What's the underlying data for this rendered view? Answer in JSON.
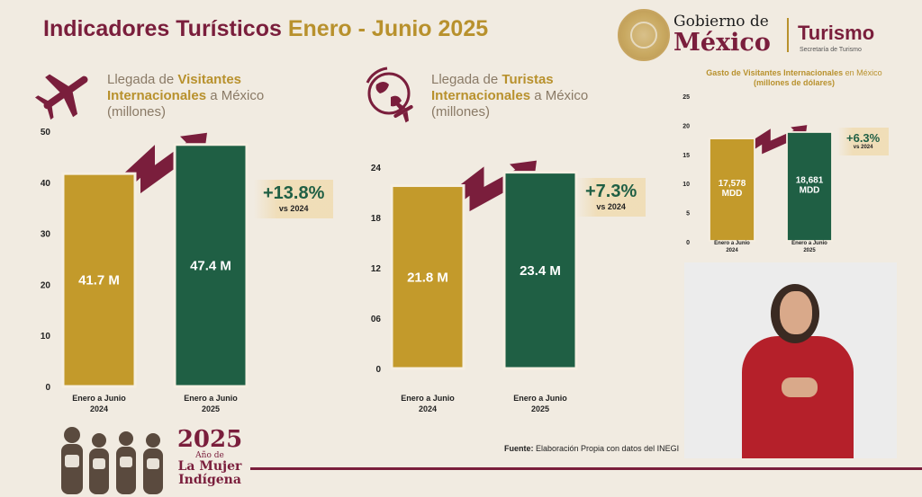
{
  "header": {
    "title_main": "Indicadores Turísticos",
    "title_period": "Enero - Junio 2025"
  },
  "government": {
    "gobierno_de": "Gobierno de",
    "mexico": "México",
    "turismo": "Turismo",
    "secretaria": "Secretaría de Turismo"
  },
  "panel1": {
    "line1_prefix": "Llegada de ",
    "line1_bold": "Visitantes",
    "line2_bold": "Internacionales",
    "line2_suffix": " a México",
    "line3": "(millones)",
    "icon": "airplane-icon",
    "growth_pct": "+13.8%",
    "growth_vs": "vs 2024"
  },
  "panel2": {
    "line1_prefix": "Llegada de ",
    "line1_bold": "Turistas",
    "line2_bold": "Internacionales",
    "line2_suffix": " a México",
    "line3": "(millones)",
    "icon": "globe-plane-icon",
    "growth_pct": "+7.3%",
    "growth_vs": "vs 2024"
  },
  "panel3": {
    "title_bold": "Gasto de Visitantes Internacionales",
    "title_suffix": " en México",
    "subtitle": "(millones de dólares)",
    "growth_pct": "+6.3%",
    "growth_vs": "vs 2024"
  },
  "chart_data": [
    {
      "type": "bar",
      "categories": [
        "Enero a Junio 2024",
        "Enero a Junio 2025"
      ],
      "category_lines": [
        [
          "Enero a Junio",
          "2024"
        ],
        [
          "Enero a Junio",
          "2025"
        ]
      ],
      "values": [
        41.7,
        47.4
      ],
      "data_labels": [
        "41.7 M",
        "47.4 M"
      ],
      "ylim": [
        0,
        50
      ],
      "yticks": [
        "0",
        "10",
        "20",
        "30",
        "40",
        "50"
      ],
      "colors": [
        "#c39a2b",
        "#1f5f44"
      ],
      "arrow_color": "#7a1e3c",
      "grid": false
    },
    {
      "type": "bar",
      "categories": [
        "Enero a Junio 2024",
        "Enero a Junio 2025"
      ],
      "category_lines": [
        [
          "Enero a Junio",
          "2024"
        ],
        [
          "Enero a Junio",
          "2025"
        ]
      ],
      "values": [
        21.8,
        23.4
      ],
      "data_labels": [
        "21.8 M",
        "23.4 M"
      ],
      "ylim": [
        0,
        24
      ],
      "yticks": [
        "0",
        "06",
        "12",
        "18",
        "24"
      ],
      "colors": [
        "#c39a2b",
        "#1f5f44"
      ],
      "arrow_color": "#7a1e3c",
      "grid": false
    },
    {
      "type": "bar",
      "categories": [
        "Enero a Junio 2024",
        "Enero a Junio 2025"
      ],
      "category_lines": [
        [
          "Enero a Junio",
          "2024"
        ],
        [
          "Enero a Junio",
          "2025"
        ]
      ],
      "values": [
        17578,
        18681
      ],
      "data_labels": [
        [
          "17,578",
          "MDD"
        ],
        [
          "18,681",
          "MDD"
        ]
      ],
      "ylim": [
        0,
        25000
      ],
      "yticks": [
        "0",
        "5",
        "10",
        "15",
        "20",
        "25"
      ],
      "colors": [
        "#c39a2b",
        "#1f5f44"
      ],
      "arrow_color": "#7a1e3c",
      "grid": false
    }
  ],
  "source": {
    "label": "Fuente:",
    "text": " Elaboración Propia con datos del INEGI"
  },
  "year_logo": {
    "year": "2025",
    "line1": "Año de",
    "line2": "La Mujer",
    "line3": "Indígena"
  },
  "video": {
    "icon": "interpreter-video"
  }
}
